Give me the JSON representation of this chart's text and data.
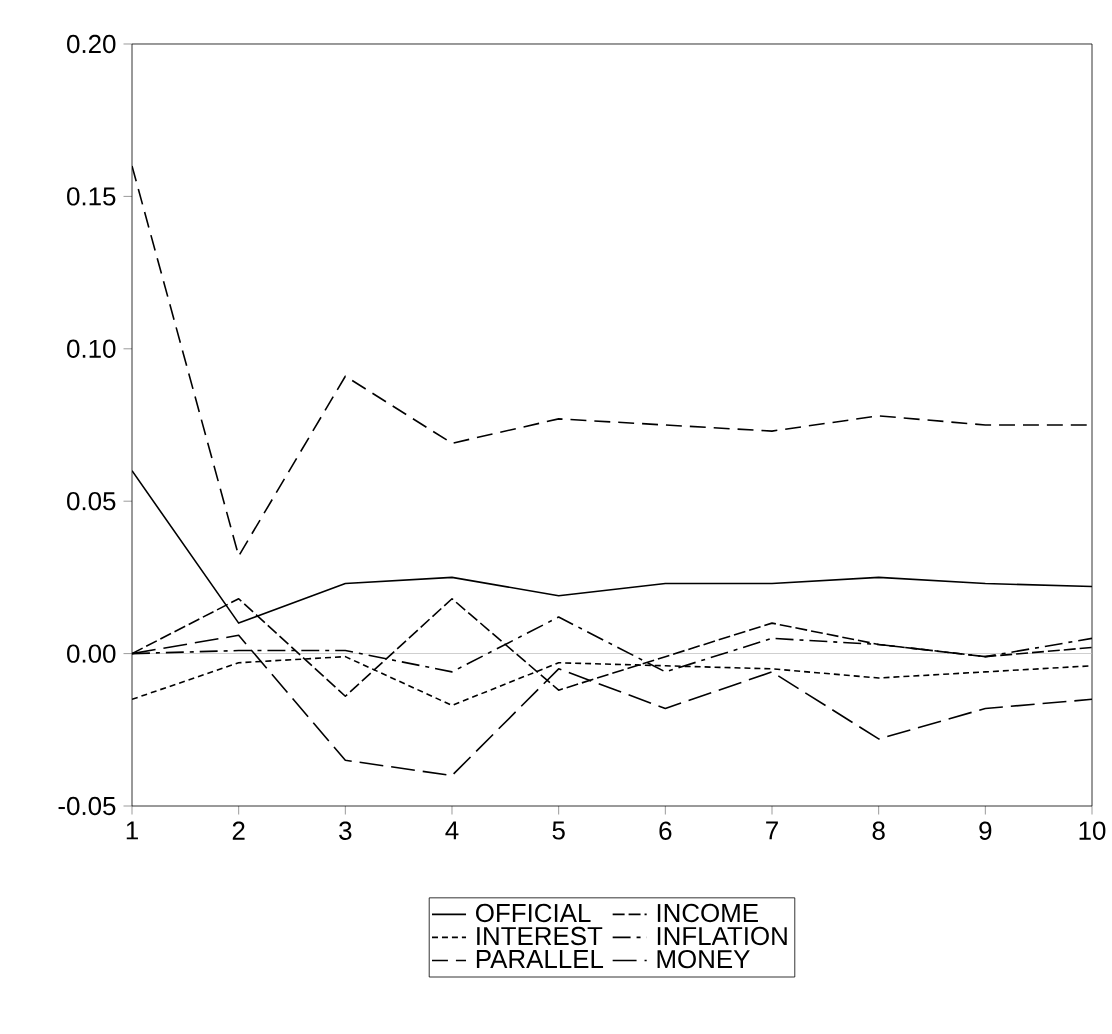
{
  "chart_data": {
    "type": "line",
    "x": [
      1,
      2,
      3,
      4,
      5,
      6,
      7,
      8,
      9,
      10
    ],
    "series": [
      {
        "name": "OFFICIAL",
        "color": "#000000",
        "line_style": "solid",
        "values": [
          0.06,
          0.01,
          0.023,
          0.025,
          0.019,
          0.023,
          0.023,
          0.025,
          0.023,
          0.022
        ]
      },
      {
        "name": "INCOME",
        "color": "#000000",
        "line_style": "dashed",
        "values": [
          0.0,
          0.018,
          -0.014,
          0.018,
          -0.012,
          -0.001,
          0.01,
          0.003,
          -0.001,
          0.002
        ]
      },
      {
        "name": "INTEREST",
        "color": "#000000",
        "line_style": "dashed",
        "values": [
          -0.015,
          -0.003,
          -0.001,
          -0.017,
          -0.003,
          -0.004,
          -0.005,
          -0.008,
          -0.006,
          -0.004
        ]
      },
      {
        "name": "INFLATION",
        "color": "#000000",
        "line_style": "dashed",
        "values": [
          0.0,
          0.001,
          0.001,
          -0.006,
          0.012,
          -0.006,
          0.005,
          0.003,
          -0.001,
          0.005
        ]
      },
      {
        "name": "PARALLEL",
        "color": "#000000",
        "line_style": "dashed",
        "values": [
          0.16,
          0.032,
          0.091,
          0.069,
          0.077,
          0.075,
          0.073,
          0.078,
          0.075,
          0.075
        ]
      },
      {
        "name": "MONEY",
        "color": "#000000",
        "line_style": "dashed",
        "values": [
          0.0,
          0.006,
          -0.035,
          -0.04,
          -0.005,
          -0.018,
          -0.006,
          -0.028,
          -0.018,
          -0.015
        ]
      }
    ],
    "xlim": [
      1,
      10
    ],
    "xticks": [
      1,
      2,
      3,
      4,
      5,
      6,
      7,
      8,
      9,
      10
    ],
    "ylim": [
      -0.05,
      0.2
    ],
    "yticks": [
      {
        "value": -0.05,
        "label": "-0.05"
      },
      {
        "value": 0.0,
        "label": "0.00"
      },
      {
        "value": 0.05,
        "label": "0.05"
      },
      {
        "value": 0.1,
        "label": "0.10"
      },
      {
        "value": 0.15,
        "label": "0.15"
      },
      {
        "value": 0.2,
        "label": "0.20"
      }
    ],
    "ref_lines": [
      {
        "axis": "y",
        "value": 0.0,
        "color": "#bbbbbb"
      }
    ],
    "grid": false,
    "legend": "bottom",
    "marker": "none"
  }
}
